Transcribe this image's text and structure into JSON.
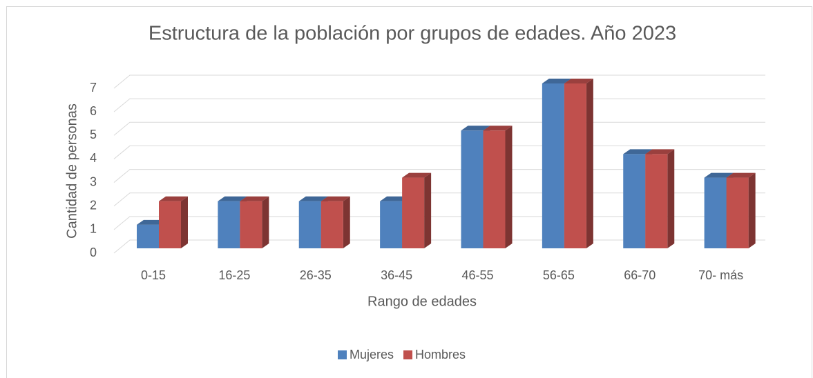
{
  "chart_data": {
    "type": "bar3d",
    "title": "Estructura de la población por grupos de edades. Año 2023",
    "x_label": "Rango de edades",
    "y_label": "Cantidad de personas",
    "categories": [
      "0-15",
      "16-25",
      "26-35",
      "36-45",
      "46-55",
      "56-65",
      "66-70",
      "70- más"
    ],
    "series": [
      {
        "name": "Mujeres",
        "color": "#4f81bd",
        "values": [
          1,
          2,
          2,
          2,
          5,
          7,
          4,
          3
        ]
      },
      {
        "name": "Hombres",
        "color": "#c0504d",
        "values": [
          2,
          2,
          2,
          3,
          5,
          7,
          4,
          3
        ]
      }
    ],
    "ylim": [
      0,
      7
    ],
    "yticks": [
      0,
      1,
      2,
      3,
      4,
      5,
      6,
      7
    ],
    "grid": true,
    "legend": "bottom"
  }
}
